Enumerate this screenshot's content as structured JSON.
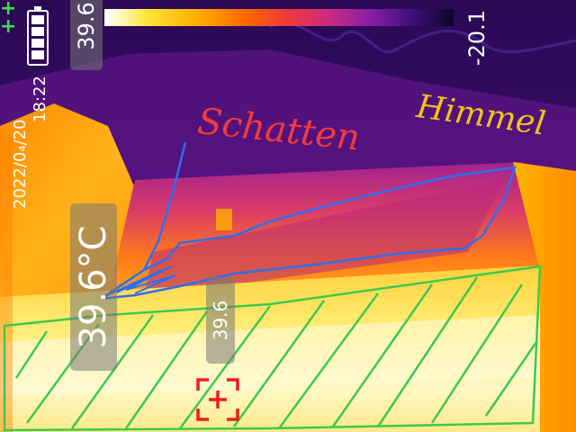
{
  "scale": {
    "max_value": "39.6",
    "min_value": "-20.1",
    "palette": [
      "#ffffff",
      "#ffe53a",
      "#ffb000",
      "#ff6a00",
      "#f23a3a",
      "#cc2b7e",
      "#8a1fa6",
      "#3e0f7a",
      "#0c0628"
    ]
  },
  "overlay": {
    "timestamp_date": "2022/0₄/20",
    "timestamp_time": "18:22",
    "center_temperature": "39.6°C",
    "spot_temperature": "39.6"
  },
  "annotations": {
    "shadow_label": "Schatten",
    "shadow_color": "#f03c3c",
    "sky_label": "Himmel",
    "sky_color": "#f2c21a",
    "shadow_outline_color": "#2f6ef0",
    "hatch_color": "#3fc84f"
  },
  "icons": {
    "status": [
      "gps-icon",
      "battery-icon"
    ],
    "target": "crosshair-icon"
  }
}
